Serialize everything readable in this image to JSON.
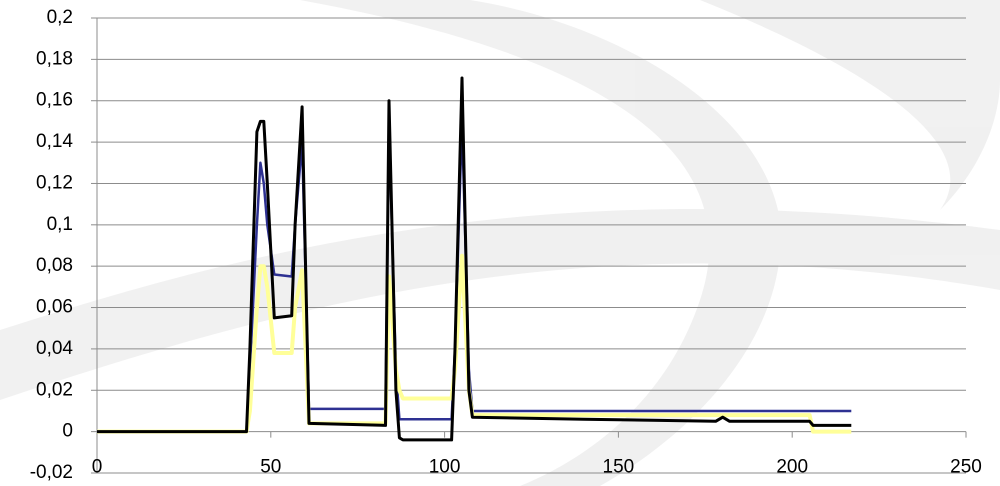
{
  "chart_data": {
    "type": "line",
    "x": [
      0,
      43,
      44,
      46,
      47,
      48,
      49,
      51,
      56,
      57,
      59,
      61,
      83,
      84,
      86,
      87,
      88,
      102,
      103,
      105,
      107,
      108,
      140,
      178,
      180,
      182,
      205,
      206,
      217
    ],
    "series": [
      {
        "color": "#2e3192",
        "values": [
          0,
          0,
          0.03,
          0.1,
          0.13,
          0.12,
          0.1,
          0.076,
          0.075,
          0.1,
          0.14,
          0.011,
          0.011,
          0.15,
          0.03,
          0.006,
          0.006,
          0.006,
          0.04,
          0.15,
          0.03,
          0.01,
          0.01,
          0.01,
          0.01,
          0.01,
          0.01,
          0.01,
          0.01
        ]
      },
      {
        "color": "#ffff99",
        "values": [
          0,
          0,
          0.01,
          0.06,
          0.08,
          0.08,
          0.07,
          0.038,
          0.038,
          0.06,
          0.078,
          0.004,
          0.004,
          0.075,
          0.03,
          0.02,
          0.016,
          0.016,
          0.03,
          0.085,
          0.02,
          0.008,
          0.008,
          0.008,
          0.008,
          0.008,
          0.008,
          0,
          0
        ]
      },
      {
        "color": "#000000",
        "values": [
          0,
          0,
          0.04,
          0.145,
          0.15,
          0.15,
          0.12,
          0.055,
          0.056,
          0.1,
          0.157,
          0.004,
          0.003,
          0.16,
          0.02,
          -0.003,
          -0.004,
          -0.004,
          0.04,
          0.171,
          0.02,
          0.007,
          0.006,
          0.005,
          0.007,
          0.005,
          0.005,
          0.003,
          0.003
        ]
      }
    ],
    "xlim": [
      0,
      250
    ],
    "xticks": [
      0,
      50,
      100,
      150,
      200,
      250
    ],
    "ylim": [
      -0.02,
      0.2
    ],
    "yticks": [
      {
        "value": -0.02,
        "label": "-0,02"
      },
      0,
      {
        "value": 0.02,
        "label": "0,02"
      },
      {
        "value": 0.04,
        "label": "0,04"
      },
      {
        "value": 0.06,
        "label": "0,06"
      },
      {
        "value": 0.08,
        "label": "0,08"
      },
      {
        "value": 0.1,
        "label": "0,1"
      },
      {
        "value": 0.12,
        "label": "0,12"
      },
      {
        "value": 0.14,
        "label": "0,14"
      },
      {
        "value": 0.16,
        "label": "0,16"
      },
      {
        "value": 0.18,
        "label": "0,18"
      },
      {
        "value": 0.2,
        "label": "0,2"
      }
    ],
    "grid": true
  }
}
